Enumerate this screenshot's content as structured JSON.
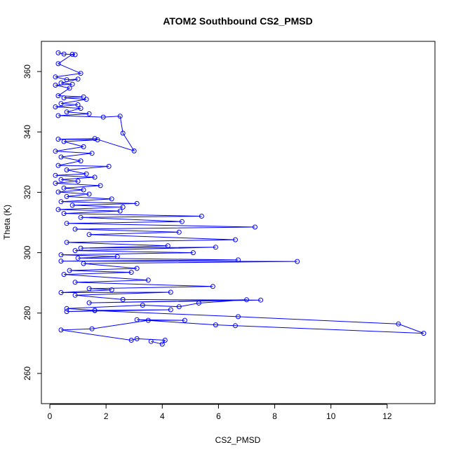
{
  "chart_data": {
    "type": "line",
    "markers": "open-circle",
    "title": "ATOM2 Southbound CS2_PMSD",
    "xlabel": "CS2_PMSD",
    "ylabel": "Theta (K)",
    "xlim": [
      -0.3,
      13.7
    ],
    "ylim": [
      250,
      370
    ],
    "xticks": [
      0,
      2,
      4,
      6,
      8,
      10,
      12
    ],
    "yticks": [
      260,
      280,
      300,
      320,
      340,
      360
    ],
    "grid": false,
    "legend": "none",
    "color": "#0000ff",
    "series": [
      {
        "points": [
          [
            0.3,
            366.2
          ],
          [
            0.5,
            365.8
          ],
          [
            0.9,
            365.6
          ],
          [
            0.8,
            365.7
          ],
          [
            0.3,
            362.6
          ],
          [
            1.1,
            359.4
          ],
          [
            0.2,
            358.2
          ],
          [
            0.6,
            357.3
          ],
          [
            1.0,
            357.5
          ],
          [
            0.4,
            356.2
          ],
          [
            0.8,
            355.8
          ],
          [
            0.2,
            355.5
          ],
          [
            0.7,
            354.5
          ],
          [
            0.3,
            352.0
          ],
          [
            1.2,
            351.6
          ],
          [
            0.5,
            351.3
          ],
          [
            1.3,
            350.8
          ],
          [
            0.4,
            349.4
          ],
          [
            1.0,
            349.0
          ],
          [
            0.2,
            348.3
          ],
          [
            1.1,
            347.8
          ],
          [
            0.6,
            346.6
          ],
          [
            1.4,
            346.0
          ],
          [
            0.3,
            345.4
          ],
          [
            1.9,
            344.9
          ],
          [
            2.5,
            345.2
          ],
          [
            2.6,
            339.6
          ],
          [
            3.0,
            333.7
          ],
          [
            1.6,
            337.8
          ],
          [
            0.3,
            337.6
          ],
          [
            1.7,
            337.4
          ],
          [
            0.5,
            336.8
          ],
          [
            1.2,
            335.1
          ],
          [
            0.2,
            333.6
          ],
          [
            1.5,
            332.9
          ],
          [
            0.4,
            331.7
          ],
          [
            1.1,
            330.4
          ],
          [
            0.3,
            328.9
          ],
          [
            2.1,
            328.6
          ],
          [
            0.6,
            327.4
          ],
          [
            1.3,
            326.1
          ],
          [
            0.2,
            325.6
          ],
          [
            1.6,
            325.0
          ],
          [
            0.4,
            324.2
          ],
          [
            1.0,
            323.7
          ],
          [
            0.2,
            323.0
          ],
          [
            1.8,
            322.2
          ],
          [
            0.5,
            321.4
          ],
          [
            1.2,
            320.8
          ],
          [
            0.3,
            320.1
          ],
          [
            1.4,
            319.4
          ],
          [
            0.6,
            318.6
          ],
          [
            2.2,
            317.8
          ],
          [
            0.4,
            316.9
          ],
          [
            3.1,
            316.3
          ],
          [
            0.8,
            315.7
          ],
          [
            2.6,
            315.1
          ],
          [
            0.3,
            314.3
          ],
          [
            2.5,
            313.8
          ],
          [
            0.5,
            313.0
          ],
          [
            5.4,
            312.1
          ],
          [
            1.1,
            311.7
          ],
          [
            4.7,
            310.3
          ],
          [
            0.6,
            309.7
          ],
          [
            7.3,
            308.5
          ],
          [
            0.9,
            307.8
          ],
          [
            4.6,
            306.8
          ],
          [
            1.4,
            306.0
          ],
          [
            6.6,
            304.3
          ],
          [
            0.6,
            303.4
          ],
          [
            4.2,
            302.3
          ],
          [
            1.1,
            301.5
          ],
          [
            5.9,
            301.8
          ],
          [
            0.9,
            300.7
          ],
          [
            5.1,
            300.0
          ],
          [
            0.4,
            299.3
          ],
          [
            2.4,
            298.7
          ],
          [
            1.0,
            298.2
          ],
          [
            6.7,
            297.6
          ],
          [
            0.4,
            297.2
          ],
          [
            8.8,
            297.1
          ],
          [
            1.2,
            296.4
          ],
          [
            3.1,
            294.8
          ],
          [
            0.7,
            294.1
          ],
          [
            2.9,
            293.5
          ],
          [
            0.5,
            292.8
          ],
          [
            3.5,
            290.9
          ],
          [
            0.9,
            290.2
          ],
          [
            5.8,
            288.8
          ],
          [
            1.4,
            288.1
          ],
          [
            2.2,
            287.7
          ],
          [
            0.4,
            286.8
          ],
          [
            4.3,
            286.9
          ],
          [
            0.9,
            285.9
          ],
          [
            2.6,
            284.5
          ],
          [
            7.5,
            284.3
          ],
          [
            1.4,
            283.4
          ],
          [
            7.0,
            284.4
          ],
          [
            5.3,
            283.3
          ],
          [
            4.6,
            282.1
          ],
          [
            3.3,
            282.6
          ],
          [
            0.6,
            281.5
          ],
          [
            1.6,
            280.9
          ],
          [
            4.3,
            281.1
          ],
          [
            0.6,
            280.5
          ],
          [
            1.6,
            280.8
          ],
          [
            6.7,
            278.8
          ],
          [
            12.4,
            276.4
          ],
          [
            13.3,
            273.3
          ],
          [
            6.6,
            275.8
          ],
          [
            5.9,
            276.1
          ],
          [
            3.1,
            277.8
          ],
          [
            4.8,
            277.6
          ],
          [
            3.5,
            277.6
          ],
          [
            1.5,
            274.8
          ],
          [
            0.4,
            274.4
          ],
          [
            2.9,
            271.0
          ],
          [
            3.1,
            271.5
          ],
          [
            4.1,
            271.0
          ],
          [
            4.0,
            269.7
          ],
          [
            3.6,
            270.6
          ]
        ]
      }
    ]
  }
}
